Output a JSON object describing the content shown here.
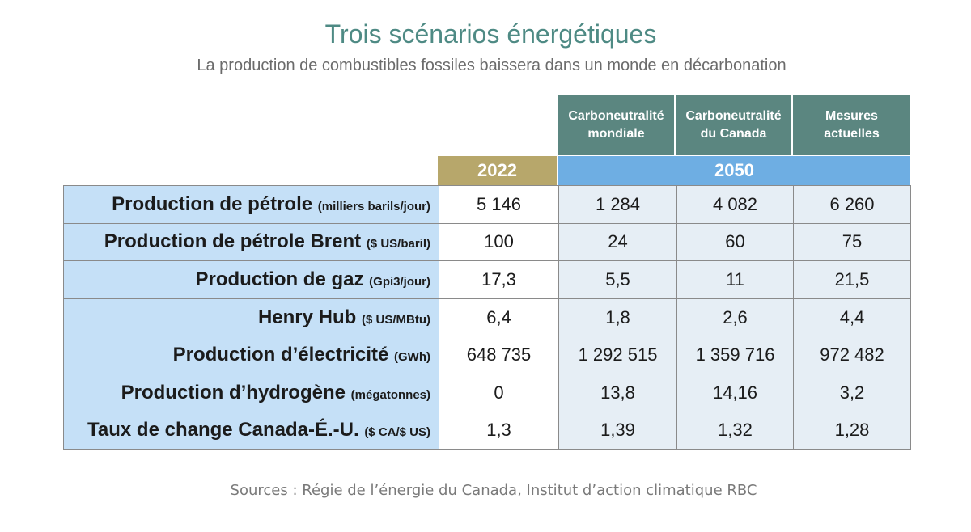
{
  "title": "Trois scénarios énergétiques",
  "subtitle": "La production de combustibles fossiles baissera dans un monde en décarbonation",
  "source": "Sources : Régie de l’énergie du Canada, Institut d’action climatique RBC",
  "colors": {
    "title": "#4e8a84",
    "scenario_header": "#5b8680",
    "year_2022": "#b7a76b",
    "year_2050": "#6eaee3",
    "row_label_bg": "#c5e0f7",
    "cell_2050_bg": "#e6eef5"
  },
  "chart_data": {
    "type": "table",
    "scenarios": [
      "Carboneutralité mondiale",
      "Carboneutralité du Canada",
      "Mesures actuelles"
    ],
    "scenario_lines": [
      [
        "Carboneutralité",
        "mondiale"
      ],
      [
        "Carboneutralité",
        "du Canada"
      ],
      [
        "Mesures",
        "actuelles"
      ]
    ],
    "years": [
      "2022",
      "2050"
    ],
    "rows": [
      {
        "label": "Production de pétrole",
        "unit": "(milliers barils/jour)",
        "values": [
          "5 146",
          "1 284",
          "4 082",
          "6 260"
        ]
      },
      {
        "label": "Production de pétrole Brent",
        "unit": "($ US/baril)",
        "values": [
          "100",
          "24",
          "60",
          "75"
        ]
      },
      {
        "label": "Production de gaz",
        "unit": "(Gpi3/jour)",
        "values": [
          "17,3",
          "5,5",
          "11",
          "21,5"
        ]
      },
      {
        "label": "Henry Hub",
        "unit": "($ US/MBtu)",
        "values": [
          "6,4",
          "1,8",
          "2,6",
          "4,4"
        ]
      },
      {
        "label": "Production d’électricité",
        "unit": "(GWh)",
        "values": [
          "648 735",
          "1 292 515",
          "1 359 716",
          "972 482"
        ]
      },
      {
        "label": "Production d’hydrogène",
        "unit": "(mégatonnes)",
        "values": [
          "0",
          "13,8",
          "14,16",
          "3,2"
        ]
      },
      {
        "label": "Taux de change Canada-É.-U.",
        "unit": "($ CA/$ US)",
        "values": [
          "1,3",
          "1,39",
          "1,32",
          "1,28"
        ]
      }
    ]
  }
}
